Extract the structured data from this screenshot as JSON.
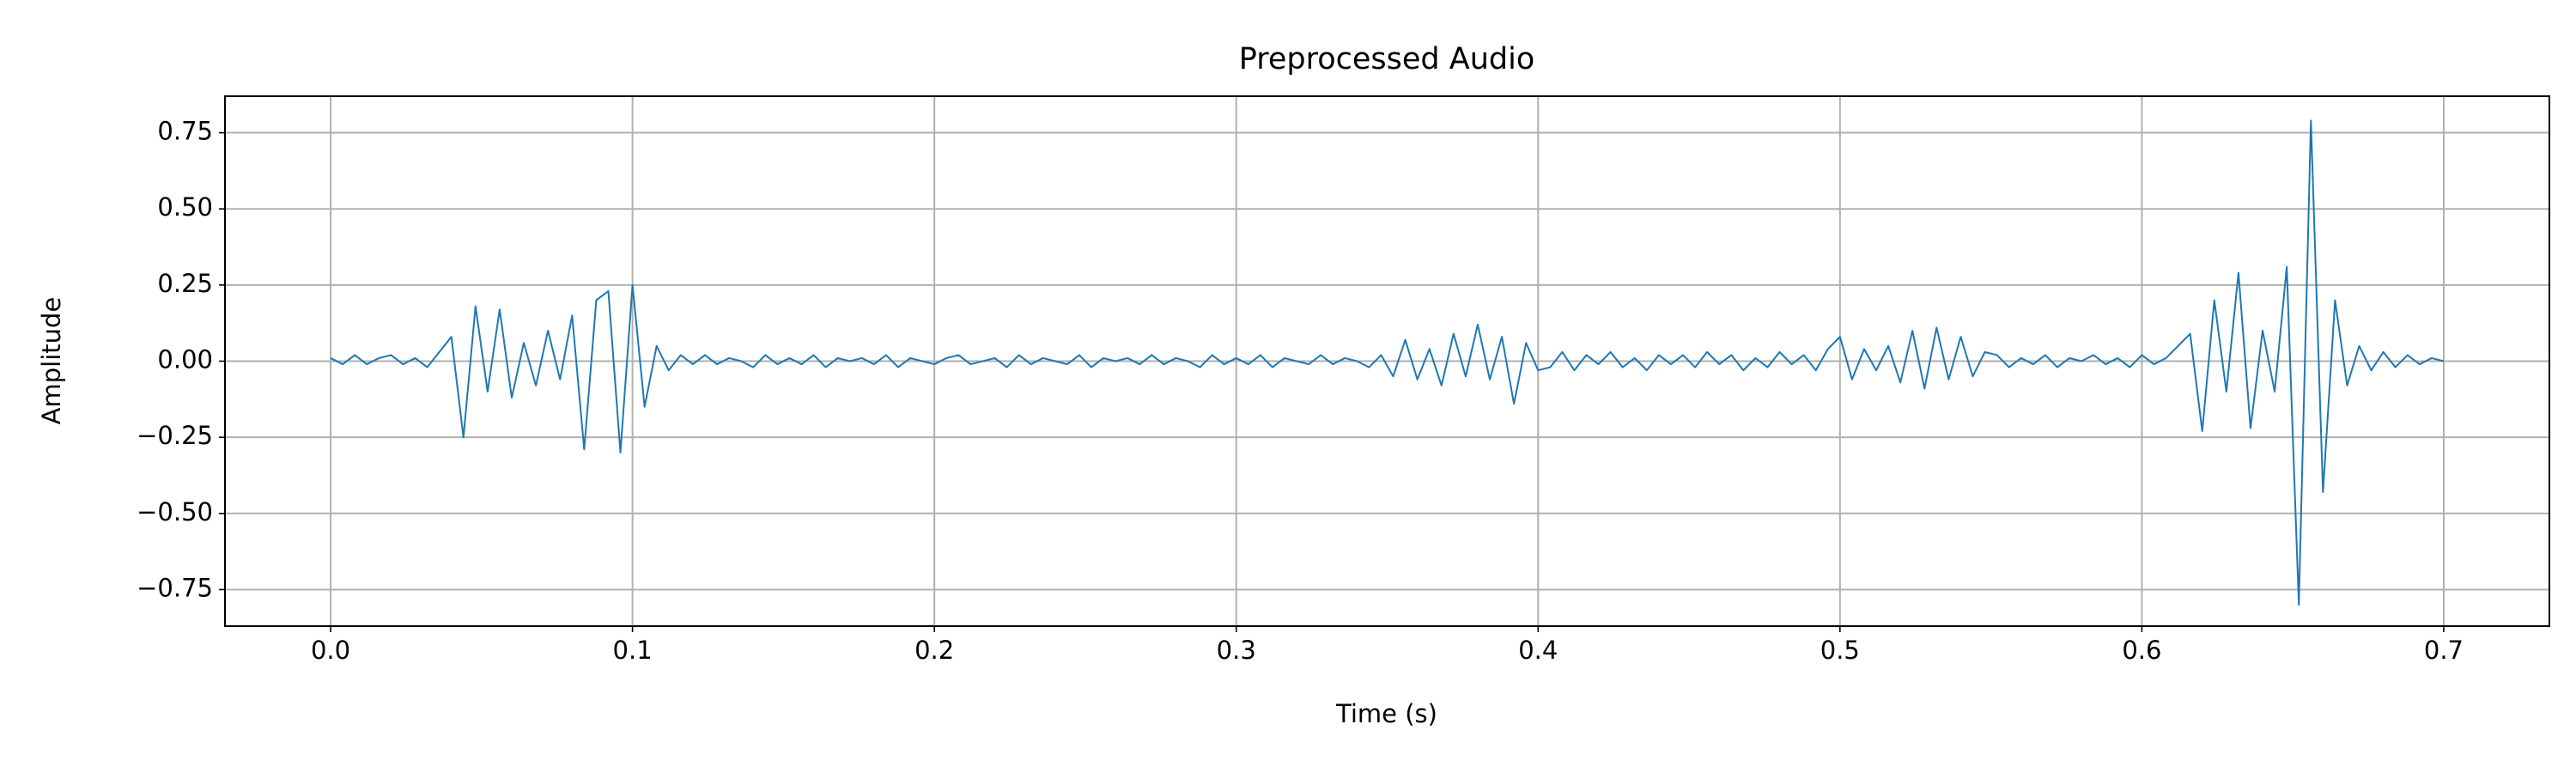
{
  "chart_data": {
    "type": "line",
    "title": "Preprocessed Audio",
    "xlabel": "Time (s)",
    "ylabel": "Amplitude",
    "color": "#1f77b4",
    "grid": true,
    "xlim": [
      -0.035,
      0.735
    ],
    "ylim": [
      -0.87,
      0.87
    ],
    "xticks": [
      {
        "value": 0,
        "label": "0.0"
      },
      0.1,
      0.2,
      0.3,
      0.4,
      0.5,
      0.6,
      0.7
    ],
    "yticks": [
      {
        "value": -0.75,
        "label": "−0.75"
      },
      {
        "value": -0.5,
        "label": "−0.50"
      },
      {
        "value": -0.25,
        "label": "−0.25"
      },
      {
        "value": 0,
        "label": "0.00"
      },
      {
        "value": 0.25,
        "label": "0.25"
      },
      {
        "value": 0.5,
        "label": "0.50"
      },
      {
        "value": 0.75,
        "label": "0.75"
      }
    ],
    "x": [
      0,
      0.004,
      0.008,
      0.012,
      0.016,
      0.02,
      0.024,
      0.028,
      0.032,
      0.036,
      0.04,
      0.044,
      0.048,
      0.052,
      0.056,
      0.06,
      0.064,
      0.068,
      0.072,
      0.076,
      0.08,
      0.084,
      0.088,
      0.092,
      0.096,
      0.1,
      0.104,
      0.108,
      0.112,
      0.116,
      0.12,
      0.124,
      0.128,
      0.132,
      0.136,
      0.14,
      0.144,
      0.148,
      0.152,
      0.156,
      0.16,
      0.164,
      0.168,
      0.172,
      0.176,
      0.18,
      0.184,
      0.188,
      0.192,
      0.196,
      0.2,
      0.204,
      0.208,
      0.212,
      0.216,
      0.22,
      0.224,
      0.228,
      0.232,
      0.236,
      0.24,
      0.244,
      0.248,
      0.252,
      0.256,
      0.26,
      0.264,
      0.268,
      0.272,
      0.276,
      0.28,
      0.284,
      0.288,
      0.292,
      0.296,
      0.3,
      0.304,
      0.308,
      0.312,
      0.316,
      0.32,
      0.324,
      0.328,
      0.332,
      0.336,
      0.34,
      0.344,
      0.348,
      0.352,
      0.356,
      0.36,
      0.364,
      0.368,
      0.372,
      0.376,
      0.38,
      0.384,
      0.388,
      0.392,
      0.396,
      0.4,
      0.404,
      0.408,
      0.412,
      0.416,
      0.42,
      0.424,
      0.428,
      0.432,
      0.436,
      0.44,
      0.444,
      0.448,
      0.452,
      0.456,
      0.46,
      0.464,
      0.468,
      0.472,
      0.476,
      0.48,
      0.484,
      0.488,
      0.492,
      0.496,
      0.5,
      0.504,
      0.508,
      0.512,
      0.516,
      0.52,
      0.524,
      0.528,
      0.532,
      0.536,
      0.54,
      0.544,
      0.548,
      0.552,
      0.556,
      0.56,
      0.564,
      0.568,
      0.572,
      0.576,
      0.58,
      0.584,
      0.588,
      0.592,
      0.596,
      0.6,
      0.604,
      0.608,
      0.612,
      0.616,
      0.62,
      0.624,
      0.628,
      0.632,
      0.636,
      0.64,
      0.644,
      0.648,
      0.652,
      0.656,
      0.66,
      0.664,
      0.668,
      0.672,
      0.676,
      0.68,
      0.684,
      0.688,
      0.692,
      0.696,
      0.7
    ],
    "values": [
      0.01,
      -0.01,
      0.02,
      -0.01,
      0.01,
      0.02,
      -0.01,
      0.01,
      -0.02,
      0.03,
      0.08,
      -0.25,
      0.18,
      -0.1,
      0.17,
      -0.12,
      0.06,
      -0.08,
      0.1,
      -0.06,
      0.15,
      -0.29,
      0.2,
      0.23,
      -0.3,
      0.25,
      -0.15,
      0.05,
      -0.03,
      0.02,
      -0.01,
      0.02,
      -0.01,
      0.01,
      0,
      -0.02,
      0.02,
      -0.01,
      0.01,
      -0.01,
      0.02,
      -0.02,
      0.01,
      0,
      0.01,
      -0.01,
      0.02,
      -0.02,
      0.01,
      0,
      -0.01,
      0.01,
      0.02,
      -0.01,
      0,
      0.01,
      -0.02,
      0.02,
      -0.01,
      0.01,
      0,
      -0.01,
      0.02,
      -0.02,
      0.01,
      0,
      0.01,
      -0.01,
      0.02,
      -0.01,
      0.01,
      0,
      -0.02,
      0.02,
      -0.01,
      0.01,
      -0.01,
      0.02,
      -0.02,
      0.01,
      0,
      -0.01,
      0.02,
      -0.01,
      0.01,
      0,
      -0.02,
      0.02,
      -0.05,
      0.07,
      -0.06,
      0.04,
      -0.08,
      0.09,
      -0.05,
      0.12,
      -0.06,
      0.08,
      -0.14,
      0.06,
      -0.03,
      -0.02,
      0.03,
      -0.03,
      0.02,
      -0.01,
      0.03,
      -0.02,
      0.01,
      -0.03,
      0.02,
      -0.01,
      0.02,
      -0.02,
      0.03,
      -0.01,
      0.02,
      -0.03,
      0.01,
      -0.02,
      0.03,
      -0.01,
      0.02,
      -0.03,
      0.04,
      0.08,
      -0.06,
      0.04,
      -0.03,
      0.05,
      -0.07,
      0.1,
      -0.09,
      0.11,
      -0.06,
      0.08,
      -0.05,
      0.03,
      0.02,
      -0.02,
      0.01,
      -0.01,
      0.02,
      -0.02,
      0.01,
      0,
      0.02,
      -0.01,
      0.01,
      -0.02,
      0.02,
      -0.01,
      0.01,
      0.05,
      0.09,
      -0.23,
      0.2,
      -0.1,
      0.29,
      -0.22,
      0.1,
      -0.1,
      0.31,
      -0.8,
      0.79,
      -0.43,
      0.2,
      -0.08,
      0.05,
      -0.03,
      0.03,
      -0.02,
      0.02,
      -0.01,
      0.01,
      0
    ]
  }
}
